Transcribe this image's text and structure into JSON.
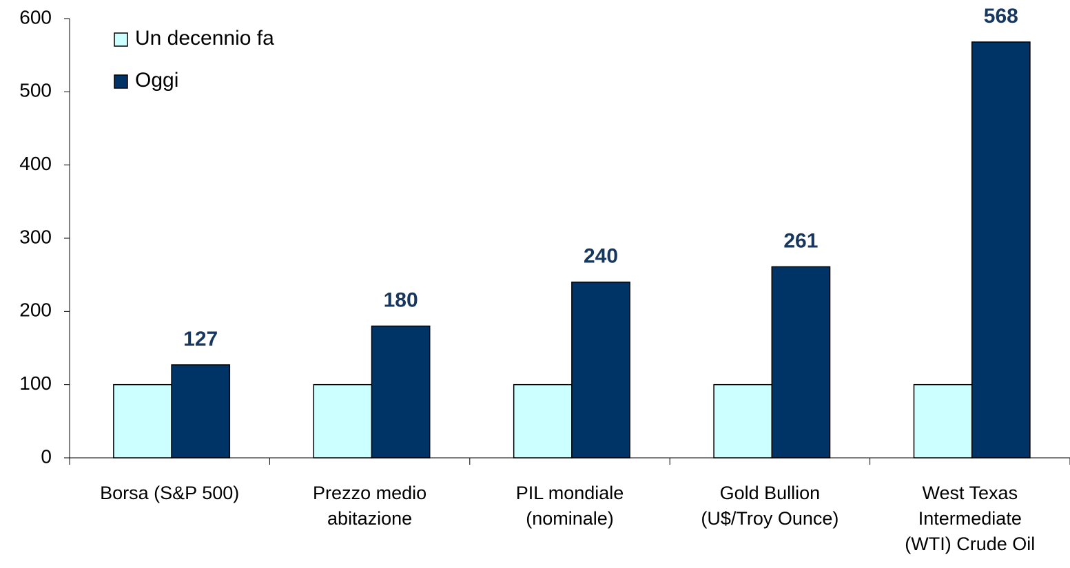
{
  "chart_data": {
    "type": "bar",
    "categories": [
      [
        "Borsa (S&P 500)"
      ],
      [
        "Prezzo medio",
        "abitazione"
      ],
      [
        "PIL mondiale",
        "(nominale)"
      ],
      [
        "Gold Bullion",
        "(U$/Troy Ounce)"
      ],
      [
        "West Texas",
        "Intermediate",
        "(WTI) Crude Oil"
      ]
    ],
    "series": [
      {
        "name": "Un decennio fa",
        "color": "#ccffff",
        "values": [
          100,
          100,
          100,
          100,
          100
        ],
        "data_labels": false
      },
      {
        "name": "Oggi",
        "color": "#003366",
        "values": [
          127,
          180,
          240,
          261,
          568
        ],
        "data_labels": true
      }
    ],
    "ylim": [
      0,
      600
    ],
    "yticks": [
      0,
      100,
      200,
      300,
      400,
      500,
      600
    ],
    "grid": false,
    "legend": "top-left"
  }
}
